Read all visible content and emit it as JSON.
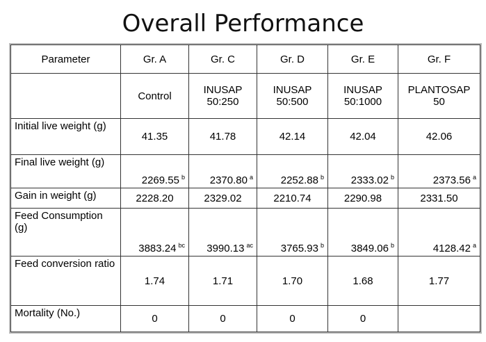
{
  "title": "Overall Performance",
  "table": {
    "columns": [
      "Parameter",
      "Gr. A",
      "Gr. C",
      "Gr. D",
      "Gr. E",
      "Gr. F"
    ],
    "groups": [
      "Control",
      "INUSAP 50:250",
      "INUSAP 50:500",
      "INUSAP 50:1000",
      "PLANTOSAP 50"
    ],
    "rows": [
      {
        "label": "Initial live weight (g)",
        "cells": [
          "41.35",
          "41.78",
          "42.14",
          "42.04",
          "42.06"
        ]
      },
      {
        "label": "Final live weight (g)",
        "cells": [
          {
            "value": "2269.55",
            "sup": "b"
          },
          {
            "value": "2370.80",
            "sup": "a"
          },
          {
            "value": "2252.88",
            "sup": "b"
          },
          {
            "value": "2333.02",
            "sup": "b"
          },
          {
            "value": "2373.56",
            "sup": "a"
          }
        ]
      },
      {
        "label": "Gain in weight (g)",
        "cells": [
          "2228.20",
          "2329.02",
          "2210.74",
          "2290.98",
          "2331.50"
        ]
      },
      {
        "label": "Feed Consumption (g)",
        "cells": [
          {
            "value": "3883.24",
            "sup": "bc"
          },
          {
            "value": "3990.13",
            "sup": "ac"
          },
          {
            "value": "3765.93",
            "sup": "b"
          },
          {
            "value": "3849.06",
            "sup": "b"
          },
          {
            "value": "4128.42",
            "sup": "a"
          }
        ]
      },
      {
        "label": "Feed conversion ratio",
        "cells": [
          "1.74",
          "1.71",
          "1.70",
          "1.68",
          "1.77"
        ]
      },
      {
        "label": "Mortality (No.)",
        "cells": [
          "0",
          "0",
          "0",
          "0",
          null
        ]
      }
    ]
  }
}
